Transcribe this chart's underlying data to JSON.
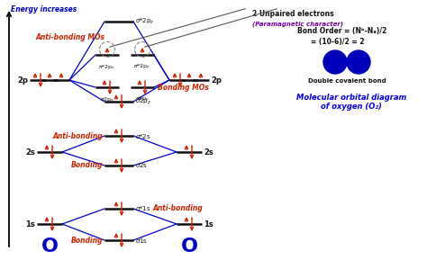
{
  "bg_color": "#ffffff",
  "title_text": "Molecular orbital diagram\nof oxygen (O₂)",
  "title_color": "#0000ee",
  "energy_label": "Energy increases",
  "bond_order_text": "Bond Order = (Nᵇ-Nₐ)/2",
  "bond_eq_text": "= (10-6)/2 = 2",
  "bond_label": "Double covalent bond",
  "unpaired_text": "2 Unpaired electrons",
  "paramag_text": "(Paramagnetic character)",
  "antibonding_mos_text": "Anti-bonding MOs",
  "bonding_mos_text": "Bonding MOs",
  "antibonding_2s_text": "Anti-bonding",
  "bonding_2s_text": "Bonding",
  "antibonding_1s_text": "Anti-bonding",
  "bonding_1s_text": "Bonding",
  "arrow_color": "#cc2200",
  "line_color": "#0000cc",
  "line_color_dark": "#000033",
  "text_color_black": "#111111",
  "text_color_red": "#cc2200",
  "text_color_blue": "#0000cc",
  "text_color_purple": "#7700aa",
  "O_color": "#0000cc",
  "mol_color": "#0000bb"
}
